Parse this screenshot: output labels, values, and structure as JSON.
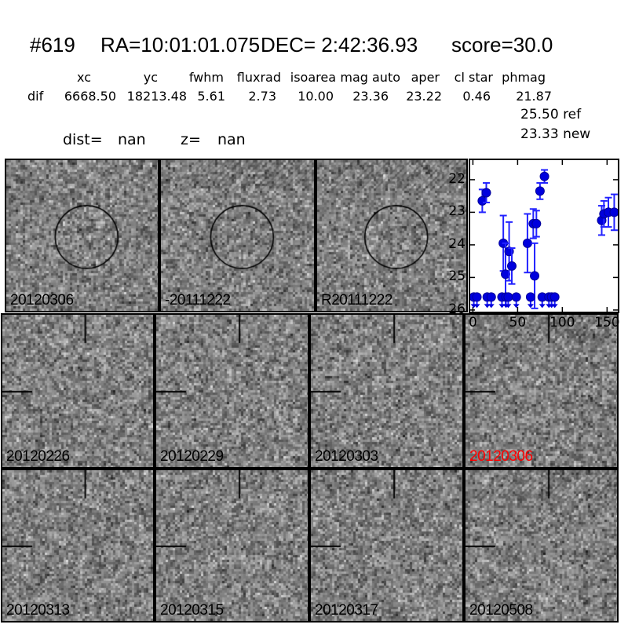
{
  "header": {
    "id": "#619",
    "ra": "RA=10:01:01.075",
    "dec": "DEC= 2:42:36.93",
    "score": "score=30.0"
  },
  "params": {
    "columns": [
      "xc",
      "yc",
      "fwhm",
      "fluxrad",
      "isoarea",
      "mag auto",
      "aper",
      "cl star",
      "phmag"
    ],
    "row_label": "dif",
    "values": [
      "6668.50",
      "18213.48",
      "5.61",
      "2.73",
      "10.00",
      "23.36",
      "23.22",
      "0.46",
      "21.87"
    ],
    "extra_lines": [
      "25.50 ref",
      "23.33 new"
    ]
  },
  "distance": {
    "dist_label": "dist=",
    "dist_value": "nan",
    "z_label": "z=",
    "z_value": "nan"
  },
  "cutouts": {
    "row1": [
      {
        "label": "20120306"
      },
      {
        "label": "-20111222"
      },
      {
        "label": "R20111222"
      }
    ],
    "row2": [
      {
        "label": "20120226"
      },
      {
        "label": "20120229"
      },
      {
        "label": "20120303"
      },
      {
        "label": "20120306",
        "color": "#ff0000"
      }
    ],
    "row3": [
      {
        "label": "20120313"
      },
      {
        "label": "20120315"
      },
      {
        "label": "20120317"
      },
      {
        "label": "20120508"
      }
    ]
  },
  "chart_data": {
    "type": "scatter",
    "title": "",
    "xlabel": "",
    "ylabel": "",
    "grid": false,
    "y_axis_inverted": true,
    "xlim": [
      -3,
      162
    ],
    "ylim": [
      26.05,
      21.4
    ],
    "xticks": [
      0,
      50,
      100,
      150
    ],
    "yticks": [
      22,
      23,
      24,
      25,
      26
    ],
    "marker_color": "#0000dd",
    "marker_edge_color": "#000099",
    "errorbar_color": "#2222ff",
    "detections": [
      {
        "t": 10.5,
        "mag": 22.65,
        "err": 0.35
      },
      {
        "t": 15.0,
        "mag": 22.4,
        "err": 0.3
      },
      {
        "t": 34.0,
        "mag": 23.95,
        "err": 0.85
      },
      {
        "t": 36.5,
        "mag": 24.9,
        "err": 0.95
      },
      {
        "t": 40.5,
        "mag": 24.2,
        "err": 0.9
      },
      {
        "t": 43.5,
        "mag": 24.65,
        "err": 0.55
      },
      {
        "t": 61.0,
        "mag": 23.95,
        "err": 0.9
      },
      {
        "t": 67.5,
        "mag": 23.35,
        "err": 0.45
      },
      {
        "t": 69.0,
        "mag": 24.95,
        "err": 1.0
      },
      {
        "t": 71.0,
        "mag": 23.35,
        "err": 0.4
      },
      {
        "t": 75.0,
        "mag": 22.35,
        "err": 0.25
      },
      {
        "t": 80.0,
        "mag": 21.9,
        "err": 0.2
      },
      {
        "t": 144.0,
        "mag": 23.25,
        "err": 0.45
      },
      {
        "t": 146.5,
        "mag": 23.05,
        "err": 0.4
      },
      {
        "t": 151.5,
        "mag": 23.0,
        "err": 0.45
      },
      {
        "t": 158.0,
        "mag": 23.0,
        "err": 0.55
      }
    ],
    "upper_limits": {
      "mag": 25.6,
      "t": [
        1,
        4.5,
        16,
        20.5,
        32.5,
        37,
        39.5,
        48.5,
        64.5,
        77.5,
        85,
        88,
        91.5
      ]
    }
  }
}
